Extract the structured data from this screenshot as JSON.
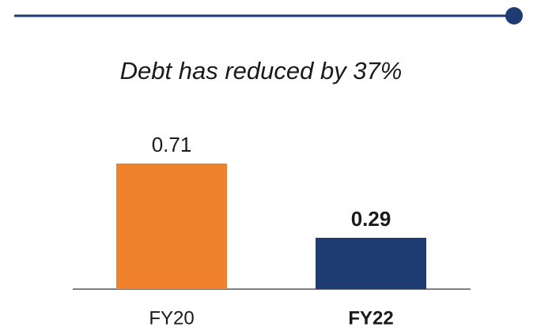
{
  "chart_data": {
    "type": "bar",
    "title": "Debt has reduced by 37%",
    "categories": [
      "FY20",
      "FY22"
    ],
    "values": [
      0.71,
      0.29
    ],
    "colors": [
      "#f0812d",
      "#1f3c72"
    ],
    "bold": [
      false,
      true
    ]
  }
}
